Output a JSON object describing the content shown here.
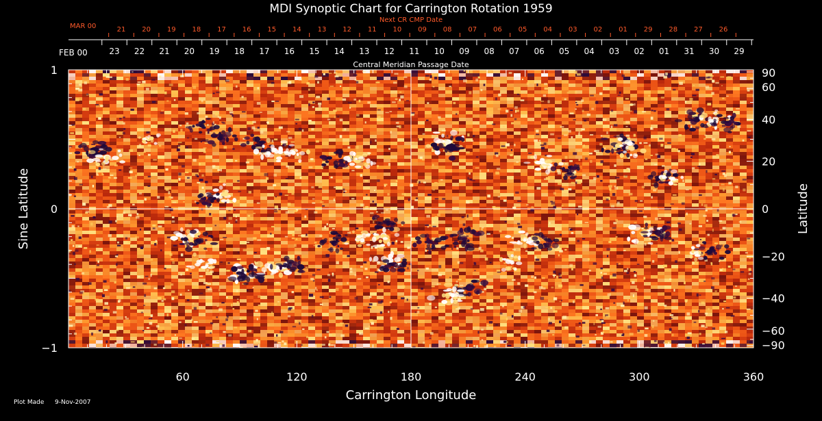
{
  "chart_data": {
    "type": "heatmap",
    "title": "MDI Synoptic Chart for Carrington Rotation 1959",
    "xlabel": "Carrington Longitude",
    "ylabel_left": "Sine Latitude",
    "ylabel_right": "Latitude",
    "xlim": [
      0,
      360
    ],
    "ylim": [
      -1,
      1
    ],
    "x_ticks": [
      "60",
      "120",
      "180",
      "240",
      "300",
      "360"
    ],
    "x_tick_values": [
      60,
      120,
      180,
      240,
      300,
      360
    ],
    "y_left_ticks": [
      {
        "value": 1,
        "label": "1"
      },
      {
        "value": 0,
        "label": "0"
      },
      {
        "value": -1,
        "label": "−1"
      }
    ],
    "y_right_ticks": [
      {
        "lat": 90,
        "label": "90"
      },
      {
        "lat": 60,
        "label": "60"
      },
      {
        "lat": 40,
        "label": "40"
      },
      {
        "lat": 20,
        "label": "20"
      },
      {
        "lat": 0,
        "label": "0"
      },
      {
        "lat": -20,
        "label": "−20"
      },
      {
        "lat": -40,
        "label": "−40"
      },
      {
        "lat": -60,
        "label": "−60"
      },
      {
        "lat": -90,
        "label": "−90"
      }
    ],
    "cmp_date_label": "Central Meridian Passage Date",
    "cmp_month_label": "FEB 00",
    "cmp_days": [
      "23",
      "22",
      "21",
      "20",
      "19",
      "18",
      "17",
      "16",
      "15",
      "14",
      "13",
      "12",
      "11",
      "10",
      "09",
      "08",
      "07",
      "06",
      "05",
      "04",
      "03",
      "02",
      "01",
      "31",
      "30",
      "29"
    ],
    "next_cmp_label": "Next CR CMP Date",
    "next_cmp_month_label": "MAR 00",
    "next_cmp_days": [
      "21",
      "20",
      "19",
      "18",
      "17",
      "16",
      "15",
      "14",
      "13",
      "12",
      "11",
      "10",
      "09",
      "08",
      "07",
      "06",
      "05",
      "04",
      "03",
      "02",
      "01",
      "29",
      "28",
      "27",
      "26"
    ],
    "grid": {
      "vertical_at": 180,
      "horizontal_at": 0
    },
    "colorscale": [
      "#2a0a3a",
      "#8a1a10",
      "#e04010",
      "#ff7a20",
      "#ffd060",
      "#ffffff"
    ],
    "features": [
      {
        "lon": 14,
        "sinlat": 0.41,
        "polarity": "negative",
        "strength": 0.9
      },
      {
        "lon": 20,
        "sinlat": 0.37,
        "polarity": "positive",
        "strength": 0.8
      },
      {
        "lon": 42,
        "sinlat": 0.5,
        "polarity": "positive",
        "strength": 0.5
      },
      {
        "lon": 70,
        "sinlat": 0.6,
        "polarity": "negative",
        "strength": 0.5
      },
      {
        "lon": 80,
        "sinlat": 0.52,
        "polarity": "negative",
        "strength": 0.7
      },
      {
        "lon": 100,
        "sinlat": 0.46,
        "polarity": "negative",
        "strength": 0.8
      },
      {
        "lon": 108,
        "sinlat": 0.42,
        "polarity": "positive",
        "strength": 0.9
      },
      {
        "lon": 118,
        "sinlat": 0.4,
        "polarity": "positive",
        "strength": 0.6
      },
      {
        "lon": 80,
        "sinlat": 0.1,
        "polarity": "positive",
        "strength": 0.8
      },
      {
        "lon": 74,
        "sinlat": 0.06,
        "polarity": "negative",
        "strength": 0.6
      },
      {
        "lon": 140,
        "sinlat": 0.36,
        "polarity": "negative",
        "strength": 0.7
      },
      {
        "lon": 152,
        "sinlat": 0.34,
        "polarity": "positive",
        "strength": 0.7
      },
      {
        "lon": 198,
        "sinlat": 0.48,
        "polarity": "positive",
        "strength": 0.9
      },
      {
        "lon": 202,
        "sinlat": 0.44,
        "polarity": "negative",
        "strength": 0.9
      },
      {
        "lon": 250,
        "sinlat": 0.32,
        "polarity": "positive",
        "strength": 0.8
      },
      {
        "lon": 262,
        "sinlat": 0.28,
        "polarity": "negative",
        "strength": 0.6
      },
      {
        "lon": 289,
        "sinlat": 0.45,
        "polarity": "negative",
        "strength": 0.9
      },
      {
        "lon": 294,
        "sinlat": 0.44,
        "polarity": "positive",
        "strength": 0.7
      },
      {
        "lon": 312,
        "sinlat": 0.22,
        "polarity": "negative",
        "strength": 0.8
      },
      {
        "lon": 318,
        "sinlat": 0.22,
        "polarity": "positive",
        "strength": 0.6
      },
      {
        "lon": 330,
        "sinlat": 0.64,
        "polarity": "negative",
        "strength": 0.8
      },
      {
        "lon": 340,
        "sinlat": 0.64,
        "polarity": "positive",
        "strength": 0.7
      },
      {
        "lon": 346,
        "sinlat": 0.62,
        "polarity": "negative",
        "strength": 0.7
      },
      {
        "lon": 62,
        "sinlat": -0.22,
        "polarity": "positive",
        "strength": 0.8
      },
      {
        "lon": 68,
        "sinlat": -0.23,
        "polarity": "negative",
        "strength": 0.8
      },
      {
        "lon": 70,
        "sinlat": -0.38,
        "polarity": "positive",
        "strength": 0.6
      },
      {
        "lon": 90,
        "sinlat": -0.46,
        "polarity": "positive",
        "strength": 0.9
      },
      {
        "lon": 94,
        "sinlat": -0.48,
        "polarity": "negative",
        "strength": 0.9
      },
      {
        "lon": 108,
        "sinlat": -0.42,
        "polarity": "positive",
        "strength": 0.9
      },
      {
        "lon": 116,
        "sinlat": -0.4,
        "polarity": "negative",
        "strength": 0.8
      },
      {
        "lon": 140,
        "sinlat": -0.24,
        "polarity": "negative",
        "strength": 0.8
      },
      {
        "lon": 152,
        "sinlat": -0.22,
        "polarity": "positive",
        "strength": 0.5
      },
      {
        "lon": 165,
        "sinlat": -0.2,
        "polarity": "positive",
        "strength": 1.0
      },
      {
        "lon": 168,
        "sinlat": -0.38,
        "polarity": "positive",
        "strength": 0.8
      },
      {
        "lon": 170,
        "sinlat": -0.4,
        "polarity": "negative",
        "strength": 0.7
      },
      {
        "lon": 168,
        "sinlat": -0.1,
        "polarity": "negative",
        "strength": 0.7
      },
      {
        "lon": 190,
        "sinlat": -0.24,
        "polarity": "negative",
        "strength": 0.8
      },
      {
        "lon": 208,
        "sinlat": -0.22,
        "polarity": "negative",
        "strength": 0.9
      },
      {
        "lon": 240,
        "sinlat": -0.22,
        "polarity": "positive",
        "strength": 0.8
      },
      {
        "lon": 250,
        "sinlat": -0.24,
        "polarity": "negative",
        "strength": 0.8
      },
      {
        "lon": 232,
        "sinlat": -0.38,
        "polarity": "positive",
        "strength": 0.6
      },
      {
        "lon": 210,
        "sinlat": -0.57,
        "polarity": "negative",
        "strength": 0.9
      },
      {
        "lon": 200,
        "sinlat": -0.62,
        "polarity": "positive",
        "strength": 0.9
      },
      {
        "lon": 303,
        "sinlat": -0.18,
        "polarity": "positive",
        "strength": 0.9
      },
      {
        "lon": 310,
        "sinlat": -0.17,
        "polarity": "negative",
        "strength": 0.8
      },
      {
        "lon": 338,
        "sinlat": -0.3,
        "polarity": "negative",
        "strength": 0.7
      },
      {
        "lon": 330,
        "sinlat": -0.32,
        "polarity": "positive",
        "strength": 0.5
      }
    ]
  },
  "footer": {
    "plot_made_label": "Plot Made",
    "plot_made_date": "9-Nov-2007"
  }
}
